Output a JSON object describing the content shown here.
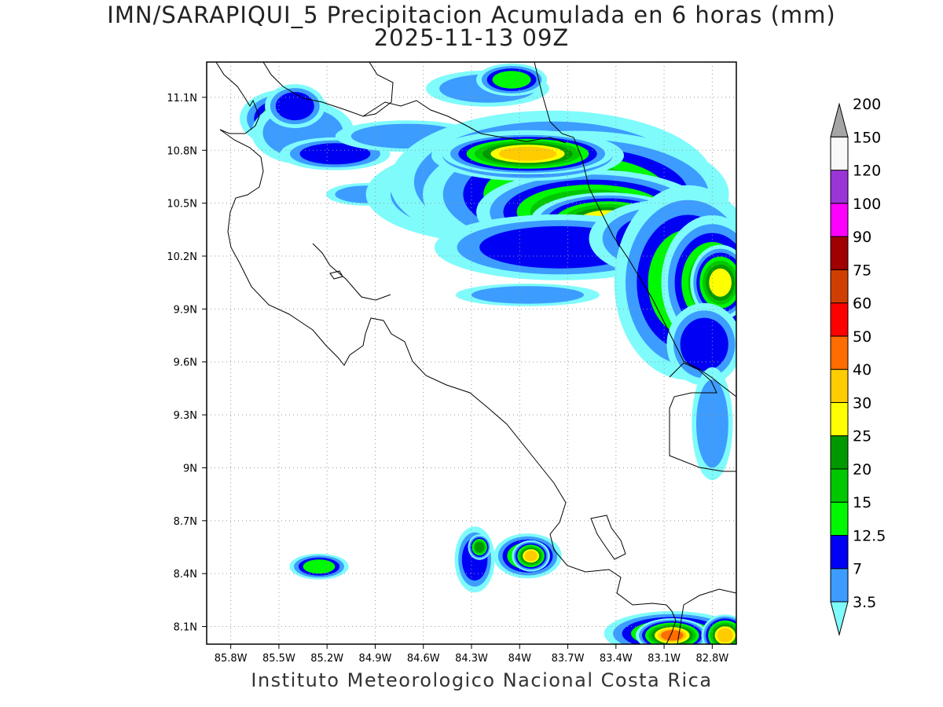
{
  "title": {
    "line1": "IMN/SARAPIQUI_5 Precipitacion Acumulada en 6 horas (mm)",
    "line2": "2025-11-13 09Z"
  },
  "footer": "Instituto Meteorologico Nacional Costa Rica",
  "map": {
    "lon_range": [
      -85.95,
      -82.65
    ],
    "lat_range": [
      8.0,
      11.3
    ],
    "x_ticks": [
      {
        "lon": -85.8,
        "label": "85.8W"
      },
      {
        "lon": -85.5,
        "label": "85.5W"
      },
      {
        "lon": -85.2,
        "label": "85.2W"
      },
      {
        "lon": -84.9,
        "label": "84.9W"
      },
      {
        "lon": -84.6,
        "label": "84.6W"
      },
      {
        "lon": -84.3,
        "label": "84.3W"
      },
      {
        "lon": -84.0,
        "label": "84W"
      },
      {
        "lon": -83.7,
        "label": "83.7W"
      },
      {
        "lon": -83.4,
        "label": "83.4W"
      },
      {
        "lon": -83.1,
        "label": "83.1W"
      },
      {
        "lon": -82.8,
        "label": "82.8W"
      }
    ],
    "y_ticks": [
      {
        "lat": 11.1,
        "label": "11.1N"
      },
      {
        "lat": 10.8,
        "label": "10.8N"
      },
      {
        "lat": 10.5,
        "label": "10.5N"
      },
      {
        "lat": 10.2,
        "label": "10.2N"
      },
      {
        "lat": 9.9,
        "label": "9.9N"
      },
      {
        "lat": 9.6,
        "label": "9.6N"
      },
      {
        "lat": 9.3,
        "label": "9.3N"
      },
      {
        "lat": 9.0,
        "label": "9N"
      },
      {
        "lat": 8.7,
        "label": "8.7N"
      },
      {
        "lat": 8.4,
        "label": "8.4N"
      },
      {
        "lat": 8.1,
        "label": "8.1N"
      }
    ],
    "grid": true,
    "precip_cells": [
      {
        "lon": -85.45,
        "lat": 10.98,
        "rx": 0.16,
        "ry": 0.09,
        "level": 3
      },
      {
        "lon": -85.35,
        "lat": 10.9,
        "rx": 0.25,
        "ry": 0.14,
        "level": 1
      },
      {
        "lon": -85.4,
        "lat": 11.05,
        "rx": 0.12,
        "ry": 0.08,
        "level": 2
      },
      {
        "lon": -85.15,
        "lat": 10.78,
        "rx": 0.22,
        "ry": 0.06,
        "level": 2
      },
      {
        "lon": -84.95,
        "lat": 10.55,
        "rx": 0.2,
        "ry": 0.05,
        "level": 1
      },
      {
        "lon": -84.7,
        "lat": 10.88,
        "rx": 0.35,
        "ry": 0.07,
        "level": 1
      },
      {
        "lon": -84.2,
        "lat": 11.15,
        "rx": 0.3,
        "ry": 0.08,
        "level": 1
      },
      {
        "lon": -84.05,
        "lat": 11.2,
        "rx": 0.12,
        "ry": 0.05,
        "level": 3
      },
      {
        "lon": -84.4,
        "lat": 10.6,
        "rx": 0.2,
        "ry": 0.06,
        "level": 2
      },
      {
        "lon": -84.1,
        "lat": 10.55,
        "rx": 0.55,
        "ry": 0.18,
        "level": 2
      },
      {
        "lon": -83.8,
        "lat": 10.62,
        "rx": 0.55,
        "ry": 0.22,
        "level": 3
      },
      {
        "lon": -83.65,
        "lat": 10.55,
        "rx": 0.45,
        "ry": 0.17,
        "level": 4
      },
      {
        "lon": -83.55,
        "lat": 10.45,
        "rx": 0.3,
        "ry": 0.1,
        "level": 5
      },
      {
        "lon": -83.45,
        "lat": 10.4,
        "rx": 0.18,
        "ry": 0.06,
        "level": 6
      },
      {
        "lon": -83.95,
        "lat": 10.77,
        "rx": 0.25,
        "ry": 0.06,
        "level": 5
      },
      {
        "lon": -83.95,
        "lat": 10.78,
        "rx": 0.18,
        "ry": 0.04,
        "level": 7
      },
      {
        "lon": -83.75,
        "lat": 10.25,
        "rx": 0.5,
        "ry": 0.12,
        "level": 2
      },
      {
        "lon": -83.1,
        "lat": 10.3,
        "rx": 0.3,
        "ry": 0.14,
        "level": 2
      },
      {
        "lon": -82.95,
        "lat": 10.05,
        "rx": 0.25,
        "ry": 0.3,
        "level": 3
      },
      {
        "lon": -82.8,
        "lat": 10.05,
        "rx": 0.15,
        "ry": 0.18,
        "level": 4
      },
      {
        "lon": -82.75,
        "lat": 10.05,
        "rx": 0.07,
        "ry": 0.08,
        "level": 6
      },
      {
        "lon": -82.85,
        "lat": 9.7,
        "rx": 0.15,
        "ry": 0.15,
        "level": 2
      },
      {
        "lon": -82.8,
        "lat": 9.25,
        "rx": 0.1,
        "ry": 0.25,
        "level": 1
      },
      {
        "lon": -83.95,
        "lat": 9.98,
        "rx": 0.35,
        "ry": 0.05,
        "level": 1
      },
      {
        "lon": -85.25,
        "lat": 8.44,
        "rx": 0.1,
        "ry": 0.04,
        "level": 3
      },
      {
        "lon": -84.28,
        "lat": 8.48,
        "rx": 0.08,
        "ry": 0.12,
        "level": 2
      },
      {
        "lon": -84.25,
        "lat": 8.55,
        "rx": 0.03,
        "ry": 0.03,
        "level": 5
      },
      {
        "lon": -83.95,
        "lat": 8.5,
        "rx": 0.1,
        "ry": 0.06,
        "level": 4
      },
      {
        "lon": -83.93,
        "lat": 8.5,
        "rx": 0.04,
        "ry": 0.03,
        "level": 7
      },
      {
        "lon": -83.05,
        "lat": 8.06,
        "rx": 0.2,
        "ry": 0.06,
        "level": 4
      },
      {
        "lon": -83.05,
        "lat": 8.05,
        "rx": 0.07,
        "ry": 0.03,
        "level": 8
      },
      {
        "lon": -82.72,
        "lat": 8.05,
        "rx": 0.05,
        "ry": 0.04,
        "level": 7
      }
    ]
  },
  "colorbar": {
    "levels": [
      "3.5",
      "7",
      "12.5",
      "15",
      "20",
      "25",
      "30",
      "40",
      "50",
      "60",
      "75",
      "90",
      "100",
      "120",
      "150",
      "200"
    ],
    "colors": [
      "#7ffbfb",
      "#3c9cff",
      "#0000f5",
      "#00f800",
      "#00c800",
      "#009a00",
      "#ffff00",
      "#ffcc00",
      "#ff6c00",
      "#ff0000",
      "#d13f00",
      "#a00000",
      "#ff00ff",
      "#9a35d6",
      "#f8f8f8",
      "#a5a5a5"
    ]
  }
}
